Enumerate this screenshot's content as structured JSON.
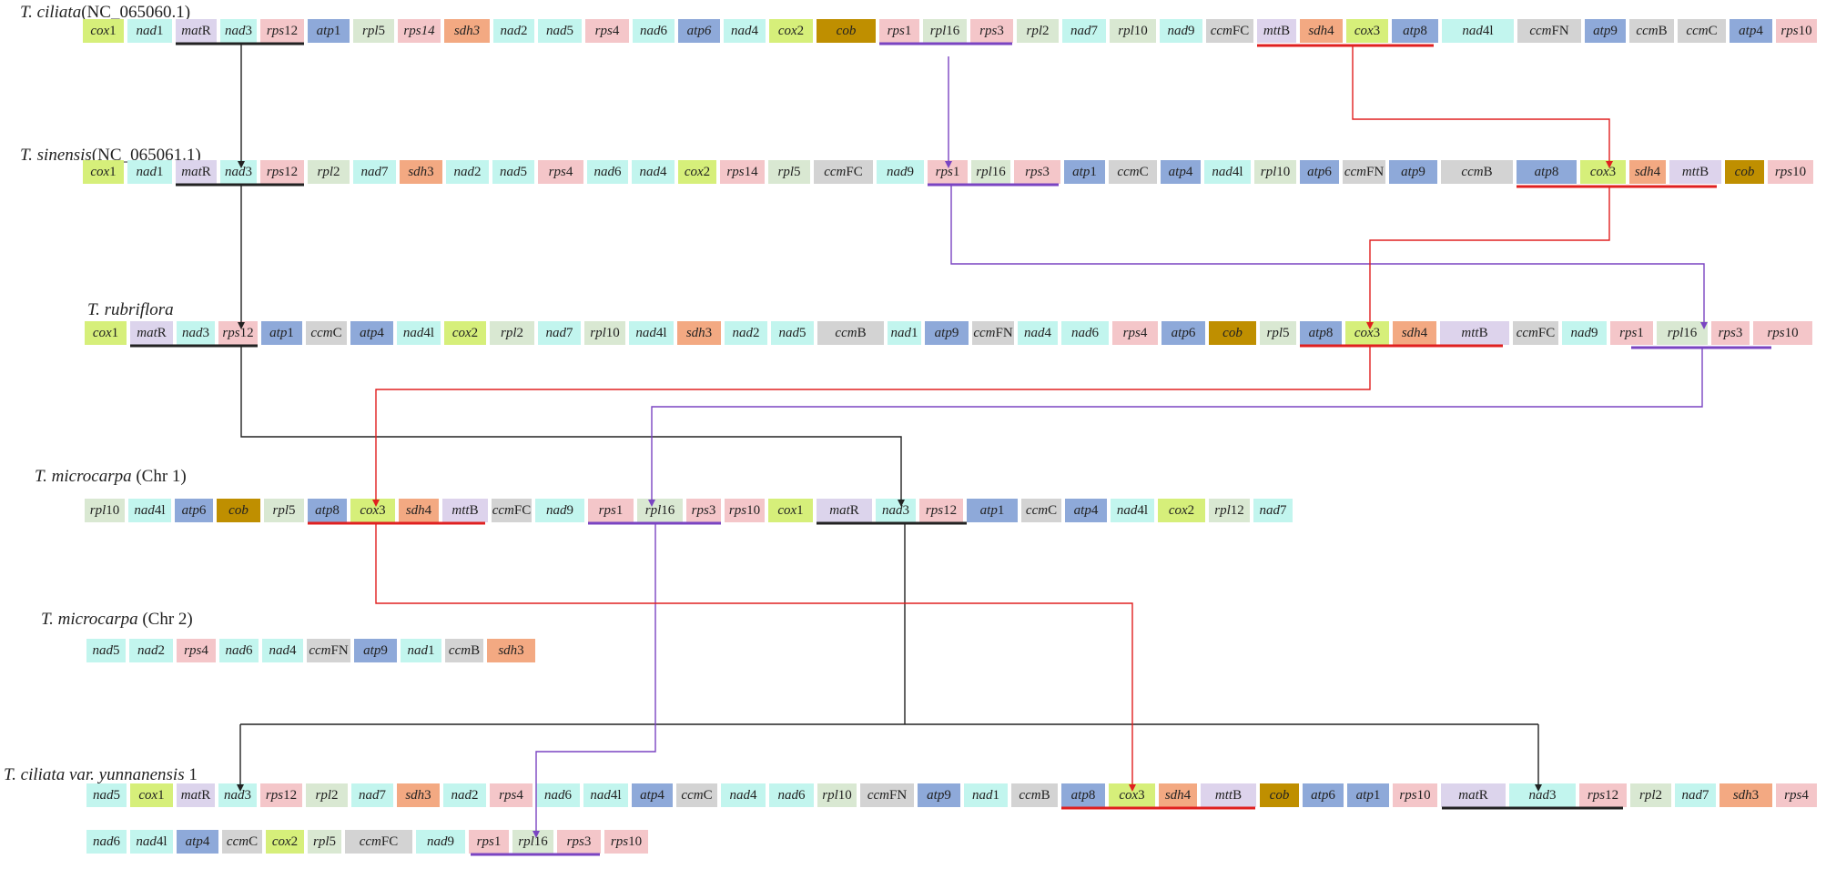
{
  "colors": {
    "cox": "#d6ef7a",
    "nad": "#c2f5ee",
    "mat": "#dcd4ec",
    "rps": "#f4c6c9",
    "atp": "#8ea9d9",
    "rpl": "#d9e8d2",
    "sdh": "#f3a982",
    "cob": "#bf8f00",
    "ccm": "#d3d3d3",
    "mtt": "#ddd3ec",
    "black": "#222222",
    "purple": "#7a44c2",
    "red": "#e02020"
  },
  "rows": [
    {
      "title": {
        "italic": "T. ciliata",
        "rest": "(NC_065060.1)"
      },
      "genes": [
        {
          "it": "cox",
          "n": "1",
          "c": "cox"
        },
        {
          "it": "nad",
          "n": "1",
          "c": "nad"
        },
        {
          "it": "mat",
          "n": "R",
          "c": "mat"
        },
        {
          "it": "nad",
          "n": "3",
          "c": "nad"
        },
        {
          "it": "rps",
          "n": "12",
          "c": "rps"
        },
        {
          "it": "atp",
          "n": "1",
          "c": "atp"
        },
        {
          "it": "rpl",
          "n": "5",
          "c": "rpl"
        },
        {
          "it": "rps14",
          "n": "",
          "c": "rps"
        },
        {
          "it": "sdh3",
          "n": "",
          "c": "sdh"
        },
        {
          "it": "nad",
          "n": "2",
          "c": "nad"
        },
        {
          "it": "nad",
          "n": "5",
          "c": "nad"
        },
        {
          "it": "rps",
          "n": "4",
          "c": "rps"
        },
        {
          "it": "nad",
          "n": "6",
          "c": "nad"
        },
        {
          "it": "atp6",
          "n": "",
          "c": "atp"
        },
        {
          "it": "nad",
          "n": "4",
          "c": "nad"
        },
        {
          "it": "cox",
          "n": "2",
          "c": "cox"
        },
        {
          "it": "cob",
          "n": "",
          "c": "cob"
        },
        {
          "it": "rps",
          "n": "1",
          "c": "rps"
        },
        {
          "it": "rpl",
          "n": "16",
          "c": "rpl"
        },
        {
          "it": "rps",
          "n": "3",
          "c": "rps"
        },
        {
          "it": "rpl",
          "n": "2",
          "c": "rpl"
        },
        {
          "it": "nad",
          "n": "7",
          "c": "nad"
        },
        {
          "it": "rpl",
          "n": "10",
          "c": "rpl"
        },
        {
          "it": "nad",
          "n": "9",
          "c": "nad"
        },
        {
          "it": "ccm",
          "n": "FC",
          "c": "ccm"
        },
        {
          "it": "mtt",
          "n": "B",
          "c": "mtt"
        },
        {
          "it": "sdh",
          "n": "4",
          "c": "sdh"
        },
        {
          "it": "cox",
          "n": "3",
          "c": "cox"
        },
        {
          "it": "atp",
          "n": "8",
          "c": "atp"
        },
        {
          "it": "nad",
          "n": "4l",
          "c": "nad"
        },
        {
          "it": "ccm",
          "n": "FN",
          "c": "ccm"
        },
        {
          "it": "atp",
          "n": "9",
          "c": "atp"
        },
        {
          "it": "ccm",
          "n": "B",
          "c": "ccm"
        },
        {
          "it": "ccm",
          "n": "C",
          "c": "ccm"
        },
        {
          "it": "atp",
          "n": "4",
          "c": "atp"
        },
        {
          "it": "rps",
          "n": "10",
          "c": "rps"
        }
      ]
    },
    {
      "title": {
        "italic": "T. sinensis",
        "rest": "(NC_065061.1)"
      },
      "genes": [
        {
          "it": "cox",
          "n": "1",
          "c": "cox"
        },
        {
          "it": "nad",
          "n": "1",
          "c": "nad"
        },
        {
          "it": "mat",
          "n": "R",
          "c": "mat"
        },
        {
          "it": "nad",
          "n": "3",
          "c": "nad"
        },
        {
          "it": "rps",
          "n": "12",
          "c": "rps"
        },
        {
          "it": "rpl",
          "n": "2",
          "c": "rpl"
        },
        {
          "it": "nad",
          "n": "7",
          "c": "nad"
        },
        {
          "it": "sdh",
          "n": "3",
          "c": "sdh"
        },
        {
          "it": "nad",
          "n": "2",
          "c": "nad"
        },
        {
          "it": "nad",
          "n": "5",
          "c": "nad"
        },
        {
          "it": "rps",
          "n": "4",
          "c": "rps"
        },
        {
          "it": "nad",
          "n": "6",
          "c": "nad"
        },
        {
          "it": "nad",
          "n": "4",
          "c": "nad"
        },
        {
          "it": "cox",
          "n": "2",
          "c": "cox"
        },
        {
          "it": "rps",
          "n": "14",
          "c": "rps"
        },
        {
          "it": "rpl",
          "n": "5",
          "c": "rpl"
        },
        {
          "it": "ccm",
          "n": "FC",
          "c": "ccm"
        },
        {
          "it": "nad",
          "n": "9",
          "c": "nad"
        },
        {
          "it": "rps",
          "n": "1",
          "c": "rps"
        },
        {
          "it": "rpl",
          "n": "16",
          "c": "rpl"
        },
        {
          "it": "rps",
          "n": "3",
          "c": "rps"
        },
        {
          "it": "atp",
          "n": "1",
          "c": "atp"
        },
        {
          "it": "ccm",
          "n": "C",
          "c": "ccm"
        },
        {
          "it": "atp",
          "n": "4",
          "c": "atp"
        },
        {
          "it": "nad",
          "n": "4l",
          "c": "nad"
        },
        {
          "it": "rpl",
          "n": "10",
          "c": "rpl"
        },
        {
          "it": "atp",
          "n": "6",
          "c": "atp"
        },
        {
          "it": "ccm",
          "n": "FN",
          "c": "ccm"
        },
        {
          "it": "atp",
          "n": "9",
          "c": "atp"
        },
        {
          "it": "ccm",
          "n": "B",
          "c": "ccm"
        },
        {
          "it": "atp",
          "n": "8",
          "c": "atp"
        },
        {
          "it": "cox",
          "n": "3",
          "c": "cox"
        },
        {
          "it": "sdh",
          "n": "4",
          "c": "sdh"
        },
        {
          "it": "mtt",
          "n": "B",
          "c": "mtt"
        },
        {
          "it": "cob",
          "n": "",
          "c": "cob"
        },
        {
          "it": "rps",
          "n": "10",
          "c": "rps"
        }
      ]
    },
    {
      "title": {
        "italic": "T. rubriflora",
        "rest": ""
      },
      "genes": [
        {
          "it": "cox",
          "n": "1",
          "c": "cox"
        },
        {
          "it": "mat",
          "n": "R",
          "c": "mat"
        },
        {
          "it": "nad",
          "n": "3",
          "c": "nad"
        },
        {
          "it": "rps",
          "n": "12",
          "c": "rps"
        },
        {
          "it": "atp",
          "n": "1",
          "c": "atp"
        },
        {
          "it": "ccm",
          "n": "C",
          "c": "ccm"
        },
        {
          "it": "atp",
          "n": "4",
          "c": "atp"
        },
        {
          "it": "nad",
          "n": "4l",
          "c": "nad"
        },
        {
          "it": "cox",
          "n": "2",
          "c": "cox"
        },
        {
          "it": "rpl",
          "n": "2",
          "c": "rpl"
        },
        {
          "it": "nad",
          "n": "7",
          "c": "nad"
        },
        {
          "it": "rpl",
          "n": "10",
          "c": "rpl"
        },
        {
          "it": "nad",
          "n": "4l",
          "c": "nad"
        },
        {
          "it": "sdh",
          "n": "3",
          "c": "sdh"
        },
        {
          "it": "nad",
          "n": "2",
          "c": "nad"
        },
        {
          "it": "nad",
          "n": "5",
          "c": "nad"
        },
        {
          "it": "ccm",
          "n": "B",
          "c": "ccm"
        },
        {
          "it": "nad",
          "n": "1",
          "c": "nad"
        },
        {
          "it": "atp",
          "n": "9",
          "c": "atp"
        },
        {
          "it": "ccm",
          "n": "FN",
          "c": "ccm"
        },
        {
          "it": "nad",
          "n": "4",
          "c": "nad"
        },
        {
          "it": "nad",
          "n": "6",
          "c": "nad"
        },
        {
          "it": "rps",
          "n": "4",
          "c": "rps"
        },
        {
          "it": "atp",
          "n": "6",
          "c": "atp"
        },
        {
          "it": "cob",
          "n": "",
          "c": "cob"
        },
        {
          "it": "rpl",
          "n": "5",
          "c": "rpl"
        },
        {
          "it": "atp",
          "n": "8",
          "c": "atp"
        },
        {
          "it": "cox",
          "n": "3",
          "c": "cox"
        },
        {
          "it": "sdh",
          "n": "4",
          "c": "sdh"
        },
        {
          "it": "mtt",
          "n": "B",
          "c": "mtt"
        },
        {
          "it": "ccm",
          "n": "FC",
          "c": "ccm"
        },
        {
          "it": "nad",
          "n": "9",
          "c": "nad"
        },
        {
          "it": "rps",
          "n": "1",
          "c": "rps"
        },
        {
          "it": "rpl",
          "n": "16",
          "c": "rpl"
        },
        {
          "it": "rps",
          "n": "3",
          "c": "rps"
        },
        {
          "it": "rps",
          "n": "10",
          "c": "rps"
        }
      ]
    },
    {
      "title": {
        "italic": "T. microcarpa",
        "rest": " (Chr 1)"
      },
      "genes": [
        {
          "it": "rpl",
          "n": "10",
          "c": "rpl"
        },
        {
          "it": "nad",
          "n": "4l",
          "c": "nad"
        },
        {
          "it": "atp",
          "n": "6",
          "c": "atp"
        },
        {
          "it": "cob",
          "n": "",
          "c": "cob"
        },
        {
          "it": "rpl",
          "n": "5",
          "c": "rpl"
        },
        {
          "it": "atp",
          "n": "8",
          "c": "atp"
        },
        {
          "it": "cox",
          "n": "3",
          "c": "cox"
        },
        {
          "it": "sdh",
          "n": "4",
          "c": "sdh"
        },
        {
          "it": "mtt",
          "n": "B",
          "c": "mtt"
        },
        {
          "it": "ccm",
          "n": "FC",
          "c": "ccm"
        },
        {
          "it": "nad",
          "n": "9",
          "c": "nad"
        },
        {
          "it": "rps",
          "n": "1",
          "c": "rps"
        },
        {
          "it": "rpl",
          "n": "16",
          "c": "rpl"
        },
        {
          "it": "rps",
          "n": "3",
          "c": "rps"
        },
        {
          "it": "rps",
          "n": "10",
          "c": "rps"
        },
        {
          "it": "cox",
          "n": "1",
          "c": "cox"
        },
        {
          "it": "mat",
          "n": "R",
          "c": "mat"
        },
        {
          "it": "nad",
          "n": "3",
          "c": "nad"
        },
        {
          "it": "rps",
          "n": "12",
          "c": "rps"
        },
        {
          "it": "atp",
          "n": "1",
          "c": "atp"
        },
        {
          "it": "ccm",
          "n": "C",
          "c": "ccm"
        },
        {
          "it": "atp",
          "n": "4",
          "c": "atp"
        },
        {
          "it": "nad",
          "n": "4l",
          "c": "nad"
        },
        {
          "it": "cox",
          "n": "2",
          "c": "cox"
        },
        {
          "it": "rpl",
          "n": "12",
          "c": "rpl"
        },
        {
          "it": "nad",
          "n": "7",
          "c": "nad"
        }
      ]
    },
    {
      "title": {
        "italic": "T. microcarpa",
        "rest": " (Chr 2)"
      },
      "genes": [
        {
          "it": "nad",
          "n": "5",
          "c": "nad"
        },
        {
          "it": "nad",
          "n": "2",
          "c": "nad"
        },
        {
          "it": "rps",
          "n": "4",
          "c": "rps"
        },
        {
          "it": "nad",
          "n": "6",
          "c": "nad"
        },
        {
          "it": "nad",
          "n": "4",
          "c": "nad"
        },
        {
          "it": "ccm",
          "n": "FN",
          "c": "ccm"
        },
        {
          "it": "atp",
          "n": "9",
          "c": "atp"
        },
        {
          "it": "nad",
          "n": "1",
          "c": "nad"
        },
        {
          "it": "ccm",
          "n": "B",
          "c": "ccm"
        },
        {
          "it": "sdh",
          "n": "3",
          "c": "sdh"
        }
      ]
    },
    {
      "title": {
        "italic": "T. ciliata var. yunnanensis",
        "rest": " 1"
      },
      "genes": [
        {
          "it": "nad",
          "n": "5",
          "c": "nad"
        },
        {
          "it": "cox",
          "n": "1",
          "c": "cox"
        },
        {
          "it": "mat",
          "n": "R",
          "c": "mat"
        },
        {
          "it": "nad",
          "n": "3",
          "c": "nad"
        },
        {
          "it": "rps",
          "n": "12",
          "c": "rps"
        },
        {
          "it": "rpl",
          "n": "2",
          "c": "rpl"
        },
        {
          "it": "nad",
          "n": "7",
          "c": "nad"
        },
        {
          "it": "sdh",
          "n": "3",
          "c": "sdh"
        },
        {
          "it": "nad",
          "n": "2",
          "c": "nad"
        },
        {
          "it": "rps",
          "n": "4",
          "c": "rps"
        },
        {
          "it": "nad",
          "n": "6",
          "c": "nad"
        },
        {
          "it": "nad",
          "n": "4l",
          "c": "nad"
        },
        {
          "it": "atp",
          "n": "4",
          "c": "atp"
        },
        {
          "it": "ccm",
          "n": "C",
          "c": "ccm"
        },
        {
          "it": "nad",
          "n": "4",
          "c": "nad"
        },
        {
          "it": "nad",
          "n": "6",
          "c": "nad"
        },
        {
          "it": "rpl",
          "n": "10",
          "c": "rpl"
        },
        {
          "it": "ccm",
          "n": "FN",
          "c": "ccm"
        },
        {
          "it": "atp",
          "n": "9",
          "c": "atp"
        },
        {
          "it": "nad",
          "n": "1",
          "c": "nad"
        },
        {
          "it": "ccm",
          "n": "B",
          "c": "ccm"
        },
        {
          "it": "atp",
          "n": "8",
          "c": "atp"
        },
        {
          "it": "cox",
          "n": "3",
          "c": "cox"
        },
        {
          "it": "sdh",
          "n": "4",
          "c": "sdh"
        },
        {
          "it": "mtt",
          "n": "B",
          "c": "mtt"
        },
        {
          "it": "cob",
          "n": "",
          "c": "cob"
        },
        {
          "it": "atp",
          "n": "6",
          "c": "atp"
        },
        {
          "it": "atp",
          "n": "1",
          "c": "atp"
        },
        {
          "it": "rps",
          "n": "10",
          "c": "rps"
        },
        {
          "it": "mat",
          "n": "R",
          "c": "mat"
        },
        {
          "it": "nad",
          "n": "3",
          "c": "nad"
        },
        {
          "it": "rps",
          "n": "12",
          "c": "rps"
        },
        {
          "it": "rpl",
          "n": "2",
          "c": "rpl"
        },
        {
          "it": "nad",
          "n": "7",
          "c": "nad"
        },
        {
          "it": "sdh",
          "n": "3",
          "c": "sdh"
        },
        {
          "it": "rps",
          "n": "4",
          "c": "rps"
        }
      ]
    },
    {
      "title": {
        "italic": "",
        "rest": ""
      },
      "genes": [
        {
          "it": "nad",
          "n": "6",
          "c": "nad"
        },
        {
          "it": "nad",
          "n": "4l",
          "c": "nad"
        },
        {
          "it": "atp",
          "n": "4",
          "c": "atp"
        },
        {
          "it": "ccm",
          "n": "C",
          "c": "ccm"
        },
        {
          "it": "cox",
          "n": "2",
          "c": "cox"
        },
        {
          "it": "rpl",
          "n": "5",
          "c": "rpl"
        },
        {
          "it": "ccm",
          "n": "FC",
          "c": "ccm"
        },
        {
          "it": "nad",
          "n": "9",
          "c": "nad"
        },
        {
          "it": "rps",
          "n": "1",
          "c": "rps"
        },
        {
          "it": "rpl",
          "n": "16",
          "c": "rpl"
        },
        {
          "it": "rps",
          "n": "3",
          "c": "rps"
        },
        {
          "it": "rps",
          "n": "10",
          "c": "rps"
        }
      ]
    }
  ]
}
